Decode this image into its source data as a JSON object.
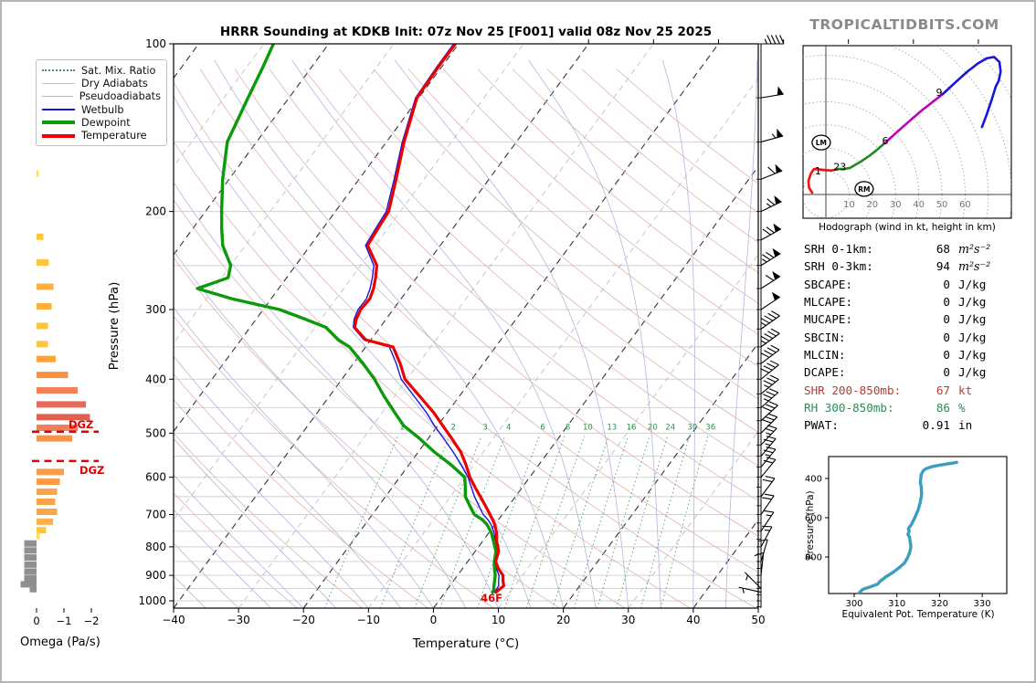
{
  "title": "HRRR Sounding at KDKB Init: 07z Nov 25 [F001] valid 08z Nov 25 2025",
  "watermark": "TROPICALTIDBITS.COM",
  "legend": {
    "items": [
      {
        "label": "Sat. Mix. Ratio",
        "color": "#3f915f",
        "style": "dotted",
        "weight": 2
      },
      {
        "label": "Dry Adiabats",
        "color": "#e4b0b0",
        "style": "solid",
        "weight": 1
      },
      {
        "label": "Pseudoadiabats",
        "color": "#b4b4e2",
        "style": "solid",
        "weight": 1
      },
      {
        "label": "Wetbulb",
        "color": "#1818d8",
        "style": "solid",
        "weight": 2
      },
      {
        "label": "Dewpoint",
        "color": "#0a9a0a",
        "style": "solid",
        "weight": 4
      },
      {
        "label": "Temperature",
        "color": "#ec0000",
        "style": "solid",
        "weight": 4
      }
    ]
  },
  "stats": {
    "rows": [
      {
        "label": "SRH 0-1km:",
        "value": "68",
        "unit": "m²s⁻²",
        "math": true,
        "color": "#000000"
      },
      {
        "label": "SRH 0-3km:",
        "value": "94",
        "unit": "m²s⁻²",
        "math": true,
        "color": "#000000"
      },
      {
        "label": "SBCAPE:",
        "value": "0",
        "unit": "J/kg",
        "math": false,
        "color": "#000000"
      },
      {
        "label": "MLCAPE:",
        "value": "0",
        "unit": "J/kg",
        "math": false,
        "color": "#000000"
      },
      {
        "label": "MUCAPE:",
        "value": "0",
        "unit": "J/kg",
        "math": false,
        "color": "#000000"
      },
      {
        "label": "SBCIN:",
        "value": "0",
        "unit": "J/kg",
        "math": false,
        "color": "#000000"
      },
      {
        "label": "MLCIN:",
        "value": "0",
        "unit": "J/kg",
        "math": false,
        "color": "#000000"
      },
      {
        "label": "DCAPE:",
        "value": "0",
        "unit": "J/kg",
        "math": false,
        "color": "#000000"
      },
      {
        "label": "SHR 200-850mb:",
        "value": "67",
        "unit": "kt",
        "math": false,
        "color": "#bb3a32"
      },
      {
        "label": "RH 300-850mb:",
        "value": "86",
        "unit": "%",
        "math": false,
        "color": "#2e8b57"
      },
      {
        "label": "PWAT:",
        "value": "0.91",
        "unit": "in",
        "math": false,
        "color": "#000000"
      }
    ]
  },
  "chart_data": [
    {
      "type": "line",
      "id": "skewt",
      "xlabel": "Temperature (°C)",
      "ylabel": "Pressure (hPa)",
      "x_ticks": [
        -40,
        -30,
        -20,
        -10,
        0,
        10,
        20,
        30,
        40,
        50
      ],
      "p_ticks": [
        100,
        200,
        300,
        400,
        500,
        600,
        700,
        800,
        900,
        1000
      ],
      "p_range": [
        100,
        1031
      ],
      "t_range": [
        -40,
        50
      ],
      "mixratio_values": [
        1,
        2,
        3,
        4,
        6,
        8,
        10,
        13,
        16,
        20,
        24,
        30,
        36
      ],
      "mixratio_label_pressure": 487,
      "surface_label": "46F",
      "dgz_label": "DGZ",
      "dgz_pressures": [
        497,
        561
      ],
      "series_colors": {
        "temperature": "#ec0000",
        "dewpoint": "#0a9a0a",
        "wetbulb": "#1818d8"
      },
      "profile": {
        "columns": [
          "pressure_hpa",
          "temperature_c",
          "dewpoint_c"
        ],
        "rows": [
          [
            100,
            -60.5,
            -88.5
          ],
          [
            110,
            -60.5,
            -87.5
          ],
          [
            125,
            -60.3,
            -86.3
          ],
          [
            150,
            -57.3,
            -84.5
          ],
          [
            175,
            -54.3,
            -81.0
          ],
          [
            200,
            -51.8,
            -77.5
          ],
          [
            215,
            -51.5,
            -75.5
          ],
          [
            230,
            -51.2,
            -73.5
          ],
          [
            250,
            -47.5,
            -70.0
          ],
          [
            263,
            -46.3,
            -69.0
          ],
          [
            275,
            -45.4,
            -72.5
          ],
          [
            287,
            -44.8,
            -66.0
          ],
          [
            300,
            -45.0,
            -57.5
          ],
          [
            312,
            -44.6,
            -52.5
          ],
          [
            323,
            -43.9,
            -48.3
          ],
          [
            340,
            -40.8,
            -45.0
          ],
          [
            350,
            -35.8,
            -42.5
          ],
          [
            375,
            -32.8,
            -38.5
          ],
          [
            400,
            -30.3,
            -35.0
          ],
          [
            430,
            -26.0,
            -31.5
          ],
          [
            460,
            -22.0,
            -28.0
          ],
          [
            485,
            -19.2,
            -25.2
          ],
          [
            510,
            -16.5,
            -21.5
          ],
          [
            540,
            -13.5,
            -17.6
          ],
          [
            570,
            -11.2,
            -13.5
          ],
          [
            600,
            -9.2,
            -10.0
          ],
          [
            625,
            -7.3,
            -8.8
          ],
          [
            650,
            -5.4,
            -7.7
          ],
          [
            675,
            -3.6,
            -6.0
          ],
          [
            700,
            -1.9,
            -4.3
          ],
          [
            715,
            -0.9,
            -2.5
          ],
          [
            730,
            0.0,
            -1.2
          ],
          [
            755,
            1.2,
            0.4
          ],
          [
            780,
            2.1,
            1.6
          ],
          [
            815,
            3.6,
            3.2
          ],
          [
            850,
            4.3,
            4.1
          ],
          [
            875,
            5.5,
            4.9
          ],
          [
            900,
            7.0,
            5.8
          ],
          [
            920,
            7.6,
            6.3
          ],
          [
            940,
            8.3,
            6.8
          ],
          [
            955,
            8.0,
            7.2
          ],
          [
            965,
            7.8,
            7.3
          ]
        ]
      },
      "winds": {
        "columns": [
          "pressure_hpa",
          "u_kt",
          "v_kt"
        ],
        "rows": [
          [
            100,
            45,
            0
          ],
          [
            125,
            49,
            8
          ],
          [
            150,
            52,
            14
          ],
          [
            175,
            55,
            22
          ],
          [
            200,
            58,
            28
          ],
          [
            225,
            60,
            33
          ],
          [
            250,
            62,
            38
          ],
          [
            275,
            52,
            33
          ],
          [
            300,
            42,
            28
          ],
          [
            325,
            37,
            26
          ],
          [
            350,
            36,
            26
          ],
          [
            375,
            32,
            24
          ],
          [
            400,
            31,
            25
          ],
          [
            425,
            27,
            22
          ],
          [
            450,
            26,
            23
          ],
          [
            475,
            22,
            20
          ],
          [
            500,
            21,
            21
          ],
          [
            525,
            18,
            19
          ],
          [
            550,
            16,
            19
          ],
          [
            575,
            15,
            18
          ],
          [
            600,
            14,
            17
          ],
          [
            650,
            12,
            16
          ],
          [
            700,
            11,
            16
          ],
          [
            750,
            8,
            12
          ],
          [
            800,
            7,
            13
          ],
          [
            850,
            3,
            10
          ],
          [
            900,
            1,
            9
          ],
          [
            950,
            -4,
            4
          ],
          [
            965,
            -4.5,
            1
          ]
        ]
      }
    },
    {
      "type": "bar",
      "id": "omega",
      "xlabel": "Omega (Pa/s)",
      "x_ticks": [
        0,
        -1,
        -2
      ],
      "positive_color": "#8f8f8f",
      "bars": [
        {
          "p": 171,
          "omega": -0.08,
          "color": "#ffe04d"
        },
        {
          "p": 222,
          "omega": -0.25,
          "color": "#fdc53e"
        },
        {
          "p": 247,
          "omega": -0.45,
          "color": "#fdc53e"
        },
        {
          "p": 273,
          "omega": -0.62,
          "color": "#fdb03c"
        },
        {
          "p": 296,
          "omega": -0.55,
          "color": "#fdb03c"
        },
        {
          "p": 321,
          "omega": -0.42,
          "color": "#fdc53e"
        },
        {
          "p": 346,
          "omega": -0.42,
          "color": "#fdc53e"
        },
        {
          "p": 368,
          "omega": -0.7,
          "color": "#fda43c"
        },
        {
          "p": 393,
          "omega": -1.15,
          "color": "#fb9242"
        },
        {
          "p": 419,
          "omega": -1.5,
          "color": "#f37e57"
        },
        {
          "p": 444,
          "omega": -1.8,
          "color": "#e8695a"
        },
        {
          "p": 468,
          "omega": -1.95,
          "color": "#e2604f"
        },
        {
          "p": 489,
          "omega": -1.5,
          "color": "#ee8060"
        },
        {
          "p": 511,
          "omega": -1.3,
          "color": "#fb9246"
        },
        {
          "p": 587,
          "omega": -1.0,
          "color": "#fc9c45"
        },
        {
          "p": 611,
          "omega": -0.85,
          "color": "#fc9c45"
        },
        {
          "p": 637,
          "omega": -0.75,
          "color": "#fca449"
        },
        {
          "p": 664,
          "omega": -0.68,
          "color": "#fca449"
        },
        {
          "p": 692,
          "omega": -0.75,
          "color": "#fca449"
        },
        {
          "p": 721,
          "omega": -0.6,
          "color": "#fdb04c"
        },
        {
          "p": 747,
          "omega": -0.35,
          "color": "#fdc53e"
        },
        {
          "p": 764,
          "omega": -0.12,
          "color": "#ffe04d"
        },
        {
          "p": 789,
          "omega": 0.45,
          "color": "#8f8f8f"
        },
        {
          "p": 812,
          "omega": 0.45,
          "color": "#8f8f8f"
        },
        {
          "p": 836,
          "omega": 0.45,
          "color": "#8f8f8f"
        },
        {
          "p": 861,
          "omega": 0.45,
          "color": "#8f8f8f"
        },
        {
          "p": 886,
          "omega": 0.45,
          "color": "#8f8f8f"
        },
        {
          "p": 911,
          "omega": 0.45,
          "color": "#8f8f8f"
        },
        {
          "p": 934,
          "omega": 0.58,
          "color": "#8f8f8f"
        },
        {
          "p": 953,
          "omega": 0.25,
          "color": "#8f8f8f"
        }
      ]
    },
    {
      "type": "line",
      "id": "hodograph",
      "caption": "Hodograph (wind in kt, height in km)",
      "ring_interval_kt": 10,
      "ring_labels": [
        10,
        20,
        30,
        40,
        50,
        60
      ],
      "segments": [
        {
          "color": "#ee1111",
          "points": [
            [
              -5.9,
              0.8
            ],
            [
              -7.3,
              3
            ],
            [
              -7.5,
              5.9
            ],
            [
              -6.5,
              9
            ],
            [
              -5.1,
              11
            ],
            [
              -2.8,
              10.8
            ],
            [
              0,
              10.5
            ],
            [
              2.5,
              10.3
            ],
            [
              5.1,
              11
            ]
          ]
        },
        {
          "color": "#1d8a1d",
          "points": [
            [
              5.1,
              11
            ],
            [
              8,
              11
            ],
            [
              10.5,
              11.5
            ],
            [
              13,
              13
            ],
            [
              15.5,
              14.5
            ],
            [
              18.5,
              16.5
            ],
            [
              21.5,
              18.8
            ],
            [
              25.2,
              22
            ]
          ]
        },
        {
          "color": "#bb00bb",
          "points": [
            [
              25.2,
              22
            ],
            [
              33,
              29
            ],
            [
              41,
              36
            ],
            [
              50.4,
              43.3
            ]
          ]
        },
        {
          "color": "#1515e0",
          "points": [
            [
              50.4,
              43.3
            ],
            [
              56,
              48.5
            ],
            [
              61,
              53
            ],
            [
              65.5,
              56.5
            ],
            [
              69.3,
              58.7
            ],
            [
              72.5,
              59.3
            ],
            [
              74.8,
              57.1
            ],
            [
              75.3,
              53
            ],
            [
              74.5,
              49
            ],
            [
              73.2,
              46.5
            ],
            [
              71.5,
              41
            ],
            [
              69.5,
              35
            ],
            [
              67.3,
              29.1
            ]
          ]
        }
      ],
      "height_labels": [
        {
          "text": "1",
          "u": -3.4,
          "v": 10.2
        },
        {
          "text": "23",
          "u": 6.0,
          "v": 12.0
        },
        {
          "text": "6",
          "u": 25.6,
          "v": 23.2
        },
        {
          "text": "9",
          "u": 48.8,
          "v": 44.0
        }
      ],
      "markers": [
        {
          "text": "LM",
          "u": -2.0,
          "v": 22.4
        },
        {
          "text": "RM",
          "u": 16.5,
          "v": 2.4
        }
      ]
    },
    {
      "type": "line",
      "id": "theta_e",
      "xlabel": "Equivalent Pot. Temperature (K)",
      "ylabel": "Pressure (hPa)",
      "x_ticks": [
        300,
        310,
        320,
        330
      ],
      "y_ticks": [
        400,
        600,
        800
      ],
      "color": "#3a9fbf",
      "profile": {
        "columns": [
          "pressure_hpa",
          "theta_e_k"
        ],
        "rows": [
          [
            986,
            301
          ],
          [
            965,
            302
          ],
          [
            950,
            304
          ],
          [
            938,
            305.5
          ],
          [
            925,
            306
          ],
          [
            900,
            307.5
          ],
          [
            880,
            309
          ],
          [
            855,
            310.5
          ],
          [
            830,
            311.8
          ],
          [
            800,
            312.6
          ],
          [
            770,
            313.1
          ],
          [
            745,
            313.3
          ],
          [
            720,
            313.1
          ],
          [
            700,
            313.0
          ],
          [
            685,
            312.6
          ],
          [
            668,
            312.9
          ],
          [
            655,
            312.7
          ],
          [
            635,
            313.4
          ],
          [
            600,
            314.2
          ],
          [
            560,
            315.0
          ],
          [
            520,
            315.5
          ],
          [
            480,
            315.8
          ],
          [
            440,
            315.7
          ],
          [
            420,
            315.5
          ],
          [
            400,
            315.6
          ],
          [
            380,
            315.7
          ],
          [
            360,
            316.2
          ],
          [
            350,
            316.8
          ],
          [
            340,
            318.2
          ],
          [
            332,
            320.0
          ],
          [
            325,
            322.0
          ],
          [
            318,
            324.0
          ]
        ]
      }
    }
  ]
}
